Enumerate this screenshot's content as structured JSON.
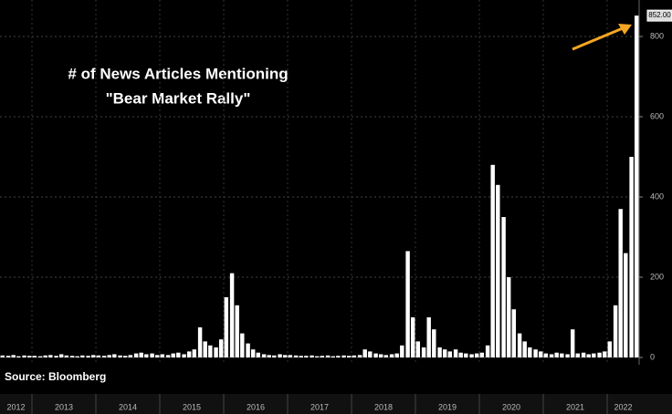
{
  "chart_data": {
    "type": "bar",
    "title": [
      "# of News Articles Mentioning",
      "\"Bear Market Rally\""
    ],
    "source": "Source: Bloomberg",
    "x": [
      2012.54,
      2012.63,
      2012.71,
      2012.79,
      2012.88,
      2012.96,
      2013.04,
      2013.13,
      2013.21,
      2013.29,
      2013.38,
      2013.46,
      2013.54,
      2013.63,
      2013.71,
      2013.79,
      2013.88,
      2013.96,
      2014.04,
      2014.13,
      2014.21,
      2014.29,
      2014.38,
      2014.46,
      2014.54,
      2014.63,
      2014.71,
      2014.79,
      2014.88,
      2014.96,
      2015.04,
      2015.13,
      2015.21,
      2015.29,
      2015.38,
      2015.46,
      2015.54,
      2015.63,
      2015.71,
      2015.79,
      2015.88,
      2015.96,
      2016.04,
      2016.13,
      2016.21,
      2016.29,
      2016.38,
      2016.46,
      2016.54,
      2016.63,
      2016.71,
      2016.79,
      2016.88,
      2016.96,
      2017.04,
      2017.13,
      2017.21,
      2017.29,
      2017.38,
      2017.46,
      2017.54,
      2017.63,
      2017.71,
      2017.79,
      2017.88,
      2017.96,
      2018.04,
      2018.13,
      2018.21,
      2018.29,
      2018.38,
      2018.46,
      2018.54,
      2018.63,
      2018.71,
      2018.79,
      2018.88,
      2018.96,
      2019.04,
      2019.13,
      2019.21,
      2019.29,
      2019.38,
      2019.46,
      2019.54,
      2019.63,
      2019.71,
      2019.79,
      2019.88,
      2019.96,
      2020.04,
      2020.13,
      2020.21,
      2020.29,
      2020.38,
      2020.46,
      2020.54,
      2020.63,
      2020.71,
      2020.79,
      2020.88,
      2020.96,
      2021.04,
      2021.13,
      2021.21,
      2021.29,
      2021.38,
      2021.46,
      2021.54,
      2021.63,
      2021.71,
      2021.79,
      2021.88,
      2021.96,
      2022.04,
      2022.13,
      2022.21,
      2022.29,
      2022.38,
      2022.46
    ],
    "values": [
      5,
      4,
      6,
      3,
      5,
      4,
      4,
      3,
      5,
      6,
      4,
      8,
      5,
      4,
      3,
      5,
      4,
      6,
      5,
      4,
      6,
      8,
      5,
      4,
      6,
      10,
      12,
      8,
      10,
      6,
      8,
      6,
      10,
      12,
      8,
      15,
      20,
      75,
      40,
      30,
      25,
      45,
      150,
      210,
      130,
      60,
      35,
      20,
      12,
      8,
      6,
      5,
      8,
      6,
      6,
      5,
      4,
      4,
      5,
      3,
      4,
      5,
      3,
      4,
      5,
      4,
      5,
      6,
      20,
      15,
      10,
      8,
      6,
      8,
      10,
      30,
      265,
      100,
      40,
      25,
      100,
      70,
      25,
      20,
      15,
      20,
      12,
      10,
      8,
      10,
      12,
      30,
      480,
      430,
      350,
      200,
      120,
      60,
      40,
      25,
      20,
      15,
      10,
      8,
      12,
      10,
      8,
      70,
      10,
      12,
      8,
      10,
      12,
      15,
      40,
      130,
      370,
      260,
      500,
      852
    ],
    "color": "#ffffff",
    "xlim": [
      2012.5,
      2022.5
    ],
    "xticks": [
      {
        "value": 2012.75,
        "label": "2012"
      },
      {
        "value": 2013.5,
        "label": "2013"
      },
      {
        "value": 2014.5,
        "label": "2014"
      },
      {
        "value": 2015.5,
        "label": "2015"
      },
      {
        "value": 2016.5,
        "label": "2016"
      },
      {
        "value": 2017.5,
        "label": "2017"
      },
      {
        "value": 2018.5,
        "label": "2018"
      },
      {
        "value": 2019.5,
        "label": "2019"
      },
      {
        "value": 2020.5,
        "label": "2020"
      },
      {
        "value": 2021.5,
        "label": "2021"
      },
      {
        "value": 2022.25,
        "label": "2022"
      }
    ],
    "ylim": [
      0,
      870
    ],
    "yticks": [
      0,
      200,
      400,
      600,
      800
    ],
    "last_value_label": {
      "value": 852,
      "label": "852.00"
    },
    "grid": true,
    "arrow_color": "#f5a623"
  }
}
